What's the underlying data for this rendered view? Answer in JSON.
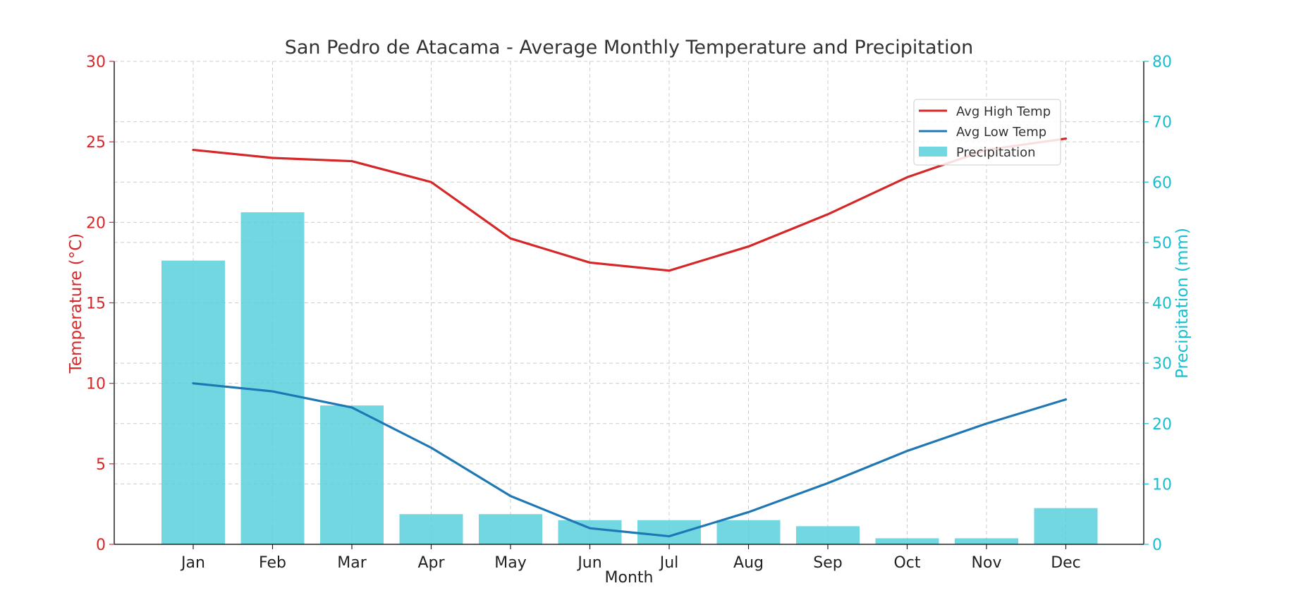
{
  "chart_data": {
    "type": "bar+line",
    "title": "San Pedro de Atacama - Average Monthly Temperature and Precipitation",
    "xlabel": "Month",
    "ylabel_left": "Temperature (°C)",
    "ylabel_right": "Precipitation (mm)",
    "categories": [
      "Jan",
      "Feb",
      "Mar",
      "Apr",
      "May",
      "Jun",
      "Jul",
      "Aug",
      "Sep",
      "Oct",
      "Nov",
      "Dec"
    ],
    "ylim_left": [
      0,
      30
    ],
    "yticks_left": [
      "0",
      "5",
      "10",
      "15",
      "20",
      "25",
      "30"
    ],
    "ylim_right": [
      0,
      80
    ],
    "yticks_right": [
      "0",
      "10",
      "20",
      "30",
      "40",
      "50",
      "60",
      "70",
      "80"
    ],
    "grid": true,
    "legend_position": "top-right",
    "series": [
      {
        "name": "Avg High Temp",
        "kind": "line",
        "axis": "left",
        "color": "#d62728",
        "values": [
          24.5,
          24.0,
          23.8,
          22.5,
          19.0,
          17.5,
          17.0,
          18.5,
          20.5,
          22.8,
          24.5,
          25.2
        ]
      },
      {
        "name": "Avg Low Temp",
        "kind": "line",
        "axis": "left",
        "color": "#1f77b4",
        "values": [
          10.0,
          9.5,
          8.5,
          6.0,
          3.0,
          1.0,
          0.5,
          2.0,
          3.8,
          5.8,
          7.5,
          9.0
        ]
      },
      {
        "name": "Precipitation",
        "kind": "bar",
        "axis": "right",
        "color": "#5bd0dd",
        "values": [
          47,
          55,
          23,
          5,
          5,
          4,
          4,
          4,
          3,
          1,
          1,
          6
        ]
      }
    ]
  }
}
